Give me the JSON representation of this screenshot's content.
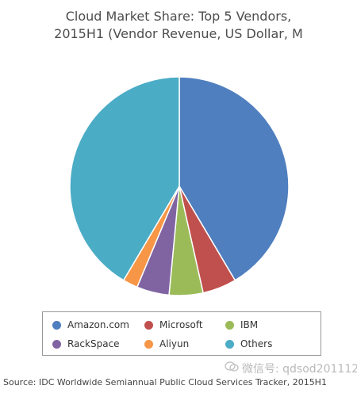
{
  "title_line1": "Cloud Market Share: Top 5 Vendors,",
  "title_line2": "2015H1 (Vendor Revenue, US Dollar, M",
  "source": "Source: IDC Worldwide Semiannual Public Cloud Services Tracker, 2015H1",
  "watermark": "微信号: qdsod201112",
  "chart_data": {
    "type": "pie",
    "title": "Cloud Market Share: Top 5 Vendors, 2015H1 (Vendor Revenue, US Dollar, M",
    "legend_position": "bottom",
    "slices": [
      {
        "name": "Amazon.com",
        "value": 41.5,
        "color": "#4f7fbf"
      },
      {
        "name": "Microsoft",
        "value": 5.0,
        "color": "#c0504d"
      },
      {
        "name": "IBM",
        "value": 5.0,
        "color": "#9bbb59"
      },
      {
        "name": "RackSpace",
        "value": 4.8,
        "color": "#8064a2"
      },
      {
        "name": "Aliyun",
        "value": 2.2,
        "color": "#f79646"
      },
      {
        "name": "Others",
        "value": 41.5,
        "color": "#4bacc6"
      }
    ]
  }
}
